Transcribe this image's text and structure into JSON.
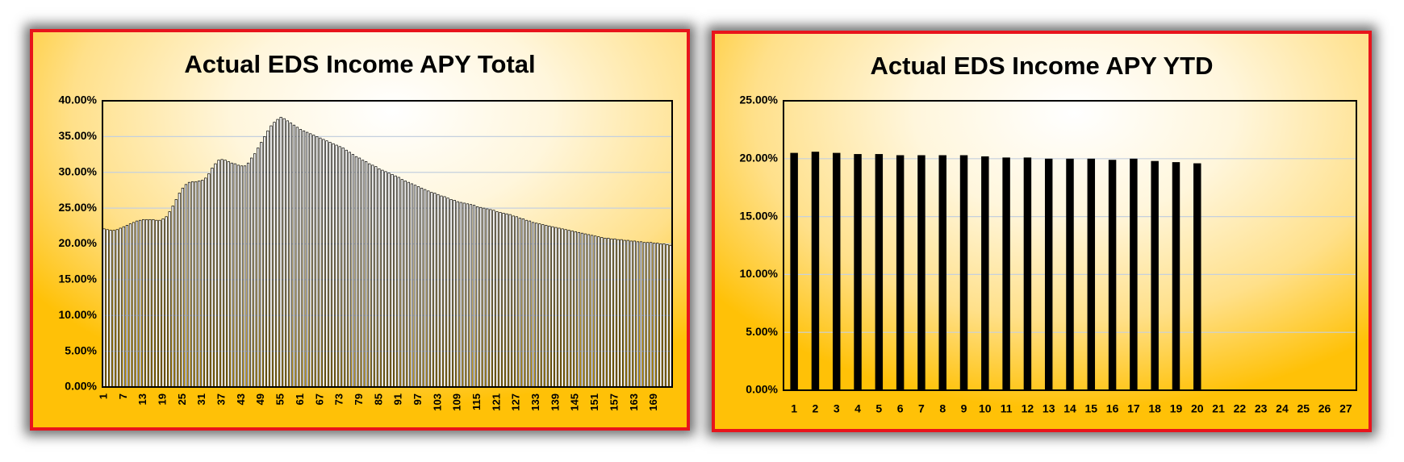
{
  "chart_data": [
    {
      "type": "bar",
      "title": "Actual EDS Income APY Total",
      "color": "#ffffff",
      "edgecolor": "#000000",
      "grid": true,
      "categories": [
        1,
        null,
        null,
        null,
        null,
        null,
        7,
        null,
        null,
        null,
        null,
        null,
        13,
        null,
        null,
        null,
        null,
        null,
        19,
        null,
        null,
        null,
        null,
        null,
        25,
        null,
        null,
        null,
        null,
        null,
        31,
        null,
        null,
        null,
        null,
        null,
        37,
        null,
        null,
        null,
        null,
        null,
        43,
        null,
        null,
        null,
        null,
        null,
        49,
        null,
        null,
        null,
        null,
        null,
        55,
        null,
        null,
        null,
        null,
        null,
        61,
        null,
        null,
        null,
        null,
        null,
        67,
        null,
        null,
        null,
        null,
        null,
        73,
        null,
        null,
        null,
        null,
        null,
        79,
        null,
        null,
        null,
        null,
        null,
        85,
        null,
        null,
        null,
        null,
        null,
        91,
        null,
        null,
        null,
        null,
        null,
        97,
        null,
        null,
        null,
        null,
        null,
        103,
        null,
        null,
        null,
        null,
        null,
        109,
        null,
        null,
        null,
        null,
        null,
        115,
        null,
        null,
        null,
        null,
        null,
        121,
        null,
        null,
        null,
        null,
        null,
        127,
        null,
        null,
        null,
        null,
        null,
        133,
        null,
        null,
        null,
        null,
        null,
        139,
        null,
        null,
        null,
        null,
        null,
        145,
        null,
        null,
        null,
        null,
        null,
        151,
        null,
        null,
        null,
        null,
        null,
        157,
        null,
        null,
        null,
        null,
        null,
        163,
        null,
        null,
        null,
        null,
        null,
        169,
        null,
        null,
        null,
        null,
        null
      ],
      "values": [
        22.1,
        22.0,
        21.9,
        21.9,
        22.0,
        22.2,
        22.4,
        22.6,
        22.8,
        23.0,
        23.2,
        23.3,
        23.4,
        23.4,
        23.4,
        23.4,
        23.3,
        23.3,
        23.5,
        23.8,
        24.5,
        25.3,
        26.2,
        27.1,
        27.8,
        28.3,
        28.6,
        28.7,
        28.7,
        28.8,
        28.9,
        29.2,
        29.8,
        30.6,
        31.2,
        31.7,
        31.8,
        31.7,
        31.5,
        31.3,
        31.2,
        31.0,
        30.9,
        30.9,
        31.3,
        32.0,
        32.6,
        33.4,
        34.2,
        35.0,
        35.8,
        36.5,
        37.0,
        37.4,
        37.7,
        37.5,
        37.2,
        36.9,
        36.6,
        36.3,
        36.0,
        35.8,
        35.6,
        35.4,
        35.2,
        35.0,
        34.8,
        34.6,
        34.4,
        34.2,
        34.0,
        33.8,
        33.6,
        33.4,
        33.1,
        32.8,
        32.5,
        32.2,
        32.0,
        31.7,
        31.5,
        31.2,
        31.0,
        30.8,
        30.5,
        30.3,
        30.1,
        29.9,
        29.7,
        29.5,
        29.3,
        29.0,
        28.8,
        28.6,
        28.4,
        28.2,
        28.0,
        27.8,
        27.6,
        27.4,
        27.2,
        27.1,
        26.9,
        26.7,
        26.6,
        26.4,
        26.2,
        26.1,
        25.9,
        25.8,
        25.7,
        25.6,
        25.5,
        25.4,
        25.2,
        25.1,
        25.0,
        24.9,
        24.8,
        24.7,
        24.5,
        24.4,
        24.3,
        24.2,
        24.1,
        23.9,
        23.8,
        23.6,
        23.5,
        23.3,
        23.2,
        23.0,
        22.9,
        22.8,
        22.7,
        22.6,
        22.5,
        22.4,
        22.3,
        22.2,
        22.1,
        22.0,
        21.9,
        21.8,
        21.7,
        21.6,
        21.5,
        21.4,
        21.3,
        21.2,
        21.1,
        21.0,
        20.9,
        20.8,
        20.8,
        20.7,
        20.7,
        20.6,
        20.6,
        20.5,
        20.5,
        20.4,
        20.4,
        20.3,
        20.3,
        20.2,
        20.2,
        20.2,
        20.1,
        20.1,
        20.0,
        20.0,
        19.9,
        19.8
      ],
      "ylim": [
        0,
        40
      ],
      "yticks": [
        {
          "value": 0,
          "label": "0.00%"
        },
        {
          "value": 5,
          "label": "5.00%"
        },
        {
          "value": 10,
          "label": "10.00%"
        },
        {
          "value": 15,
          "label": "15.00%"
        },
        {
          "value": 20,
          "label": "20.00%"
        },
        {
          "value": 25,
          "label": "25.00%"
        },
        {
          "value": 30,
          "label": "30.00%"
        },
        {
          "value": 35,
          "label": "35.00%"
        },
        {
          "value": 40,
          "label": "40.00%"
        }
      ]
    },
    {
      "type": "bar",
      "title": "Actual EDS Income APY YTD",
      "color": "#000000",
      "edgecolor": "#000000",
      "grid": true,
      "categories": [
        1,
        2,
        3,
        4,
        5,
        6,
        7,
        8,
        9,
        10,
        11,
        12,
        13,
        14,
        15,
        16,
        17,
        18,
        19,
        20,
        21,
        22,
        23,
        24,
        25,
        26,
        27
      ],
      "values": [
        20.5,
        20.6,
        20.5,
        20.4,
        20.4,
        20.3,
        20.3,
        20.3,
        20.3,
        20.2,
        20.1,
        20.1,
        20.0,
        20.0,
        20.0,
        19.9,
        20.0,
        19.8,
        19.7,
        19.6,
        null,
        null,
        null,
        null,
        null,
        null,
        null
      ],
      "ylim": [
        0,
        25
      ],
      "yticks": [
        {
          "value": 0,
          "label": "0.00%"
        },
        {
          "value": 5,
          "label": "5.00%"
        },
        {
          "value": 10,
          "label": "10.00%"
        },
        {
          "value": 15,
          "label": "15.00%"
        },
        {
          "value": 20,
          "label": "20.00%"
        },
        {
          "value": 25,
          "label": "25.00%"
        }
      ]
    }
  ]
}
